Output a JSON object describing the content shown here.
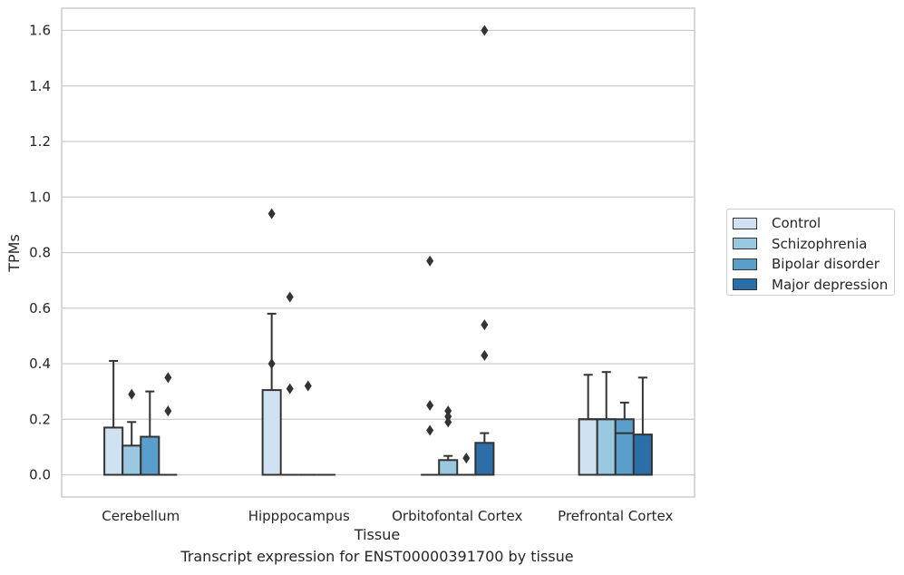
{
  "caption": "Transcript expression for ENST00000391700 by tissue",
  "chart_data": {
    "type": "boxplot",
    "xlabel": "Tissue",
    "ylabel": "TPMs",
    "ylim": [
      -0.08,
      1.68
    ],
    "yticks": [
      "0.0",
      "0.2",
      "0.4",
      "0.6",
      "0.8",
      "1.0",
      "1.2",
      "1.4",
      "1.6"
    ],
    "ytick_values": [
      0,
      0.2,
      0.4,
      0.6,
      0.8,
      1.0,
      1.2,
      1.4,
      1.6
    ],
    "grid": "horizontal",
    "legend_position": "right",
    "categories": [
      "Cerebellum",
      "Hipppocampus",
      "Orbitofontal Cortex",
      "Prefrontal Cortex"
    ],
    "series": [
      {
        "name": "Control",
        "color": "#d0e2f2",
        "boxes": [
          {
            "q1": 0.0,
            "median": 0.0,
            "q3": 0.17,
            "whisker_low": 0.0,
            "whisker_high": 0.41,
            "outliers": []
          },
          {
            "q1": 0.0,
            "median": 0.0,
            "q3": 0.305,
            "whisker_low": 0.0,
            "whisker_high": 0.58,
            "outliers": [
              0.94,
              0.4
            ]
          },
          {
            "q1": 0.0,
            "median": 0.0,
            "q3": 0.0,
            "whisker_low": 0.0,
            "whisker_high": 0.0,
            "outliers": [
              0.77,
              0.25,
              0.16
            ]
          },
          {
            "q1": 0.0,
            "median": 0.2,
            "q3": 0.2,
            "whisker_low": 0.0,
            "whisker_high": 0.36,
            "outliers": []
          }
        ]
      },
      {
        "name": "Schizophrenia",
        "color": "#9ac8e0",
        "boxes": [
          {
            "q1": 0.0,
            "median": 0.0,
            "q3": 0.105,
            "whisker_low": 0.0,
            "whisker_high": 0.19,
            "outliers": [
              0.29
            ]
          },
          {
            "q1": 0.0,
            "median": 0.0,
            "q3": 0.0,
            "whisker_low": 0.0,
            "whisker_high": 0.0,
            "outliers": [
              0.64,
              0.31
            ]
          },
          {
            "q1": 0.0,
            "median": 0.0,
            "q3": 0.053,
            "whisker_low": 0.0,
            "whisker_high": 0.068,
            "outliers": [
              0.23,
              0.21,
              0.19
            ]
          },
          {
            "q1": 0.0,
            "median": 0.2,
            "q3": 0.2,
            "whisker_low": 0.0,
            "whisker_high": 0.37,
            "outliers": []
          }
        ]
      },
      {
        "name": "Bipolar disorder",
        "color": "#5a9fcb",
        "boxes": [
          {
            "q1": 0.0,
            "median": 0.0,
            "q3": 0.137,
            "whisker_low": 0.0,
            "whisker_high": 0.3,
            "outliers": []
          },
          {
            "q1": 0.0,
            "median": 0.0,
            "q3": 0.0,
            "whisker_low": 0.0,
            "whisker_high": 0.0,
            "outliers": [
              0.32
            ]
          },
          {
            "q1": 0.0,
            "median": 0.0,
            "q3": 0.0,
            "whisker_low": 0.0,
            "whisker_high": 0.0,
            "outliers": [
              0.06
            ]
          },
          {
            "q1": 0.0,
            "median": 0.15,
            "q3": 0.2,
            "whisker_low": 0.0,
            "whisker_high": 0.26,
            "outliers": []
          }
        ]
      },
      {
        "name": "Major depression",
        "color": "#2c6fa8",
        "boxes": [
          {
            "q1": 0.0,
            "median": 0.0,
            "q3": 0.0,
            "whisker_low": 0.0,
            "whisker_high": 0.0,
            "outliers": [
              0.35,
              0.23
            ]
          },
          {
            "q1": 0.0,
            "median": 0.0,
            "q3": 0.0,
            "whisker_low": 0.0,
            "whisker_high": 0.0,
            "outliers": []
          },
          {
            "q1": 0.0,
            "median": 0.0,
            "q3": 0.115,
            "whisker_low": 0.0,
            "whisker_high": 0.15,
            "outliers": [
              1.6,
              0.54,
              0.43
            ]
          },
          {
            "q1": 0.0,
            "median": 0.0,
            "q3": 0.145,
            "whisker_low": 0.0,
            "whisker_high": 0.35,
            "outliers": []
          }
        ]
      }
    ]
  }
}
